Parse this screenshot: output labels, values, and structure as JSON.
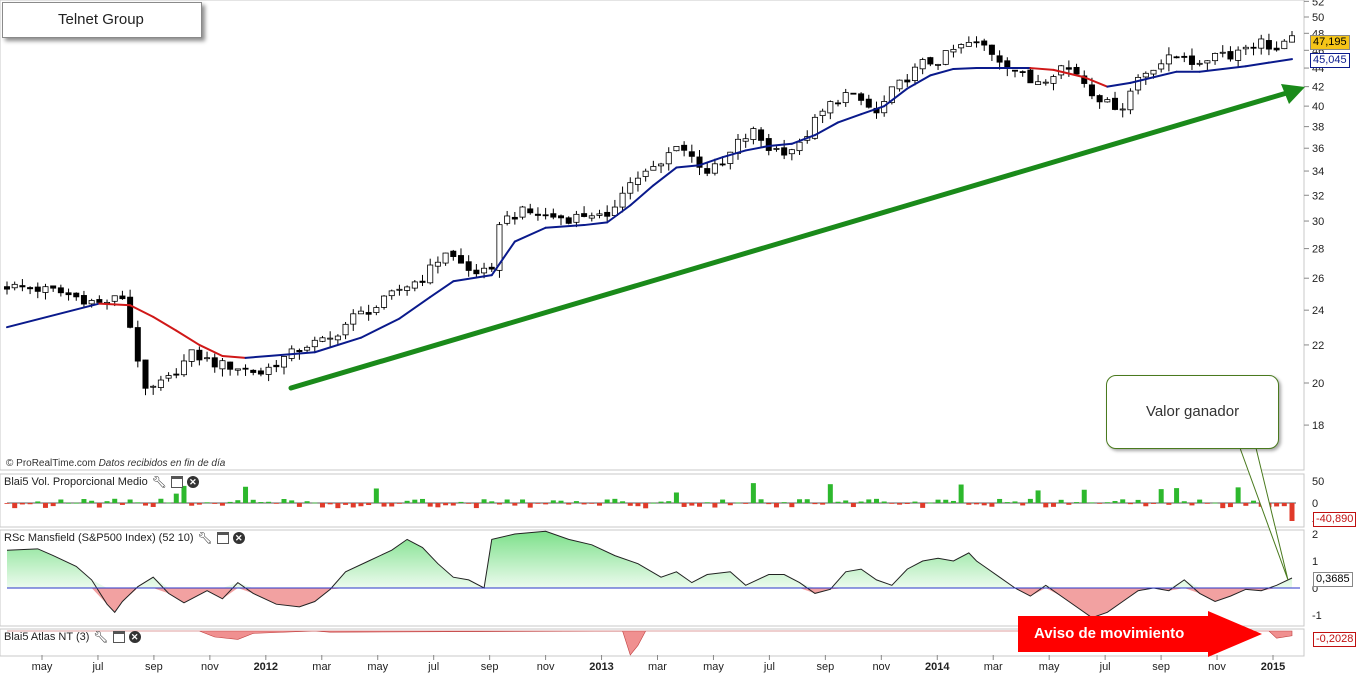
{
  "window": {
    "title": "Telnet Group",
    "credit": "© ProRealTime.com",
    "credit_note": "Datos recibidos en fin de día"
  },
  "panels": {
    "volume_label": "Blai5 Vol. Proporcional Medio",
    "mansfield_label": "RSc Mansfield (S&P500 Index) (52 10)",
    "atlas_label": "Blai5 Atlas NT (3)"
  },
  "annotations": {
    "callout": "Valor ganador",
    "aviso": "Aviso de movimiento"
  },
  "price_tags": {
    "last": "47,195",
    "ma": "45,045",
    "volume": "-40,890",
    "mansfield": "0,3685",
    "atlas": "-0,2028"
  },
  "colors": {
    "candle_outline": "#000000",
    "ma_up": "#0a1a8c",
    "ma_down": "#d01818",
    "trendline": "#1a8a1a",
    "vol_up": "#2db82d",
    "vol_down": "#e03a2a",
    "rs_pos": "#8eea9a",
    "rs_neg": "#f09090",
    "zero_line": "#2a36c8",
    "aviso": "#ff0000",
    "last_tag": "#f5c518"
  },
  "chart_data": [
    {
      "type": "candlestick",
      "title": "Telnet Group",
      "x_ticks": [
        "may",
        "jul",
        "sep",
        "nov",
        "2012",
        "mar",
        "may",
        "jul",
        "sep",
        "nov",
        "2013",
        "mar",
        "may",
        "jul",
        "sep",
        "nov",
        "2014",
        "mar",
        "may",
        "jul",
        "sep",
        "nov",
        "2015"
      ],
      "y_ticks": [
        18,
        20,
        22,
        24,
        26,
        28,
        30,
        32,
        34,
        36,
        38,
        40,
        42,
        44,
        46,
        48,
        50,
        52
      ],
      "ylim": [
        16,
        52
      ],
      "y_scale": "log",
      "price_points": [
        [
          0,
          25.5
        ],
        [
          6,
          25.2
        ],
        [
          12,
          24.4
        ],
        [
          15,
          24.8
        ],
        [
          18,
          19.5
        ],
        [
          21,
          20.2
        ],
        [
          24,
          21.5
        ],
        [
          27,
          21.0
        ],
        [
          30,
          20.8
        ],
        [
          33,
          20.5
        ],
        [
          36,
          21.3
        ],
        [
          39,
          22.0
        ],
        [
          42,
          22.3
        ],
        [
          45,
          23.6
        ],
        [
          48,
          24.2
        ],
        [
          51,
          25.3
        ],
        [
          54,
          26.0
        ],
        [
          57,
          27.8
        ],
        [
          60,
          26.5
        ],
        [
          63,
          26.3
        ],
        [
          64,
          30.0
        ],
        [
          67,
          30.7
        ],
        [
          70,
          30.4
        ],
        [
          73,
          30.2
        ],
        [
          76,
          30.6
        ],
        [
          78,
          30.0
        ],
        [
          80,
          32.5
        ],
        [
          82,
          33.5
        ],
        [
          85,
          34.5
        ],
        [
          87,
          36.5
        ],
        [
          89,
          35.2
        ],
        [
          91,
          34.0
        ],
        [
          93,
          34.5
        ],
        [
          95,
          36.5
        ],
        [
          97,
          37.5
        ],
        [
          99,
          36.0
        ],
        [
          101,
          35.8
        ],
        [
          103,
          36.2
        ],
        [
          105,
          38.5
        ],
        [
          107,
          40.2
        ],
        [
          109,
          41.2
        ],
        [
          111,
          40.5
        ],
        [
          113,
          39.2
        ],
        [
          115,
          41.5
        ],
        [
          117,
          43.0
        ],
        [
          119,
          44.5
        ],
        [
          121,
          44.8
        ],
        [
          123,
          46.0
        ],
        [
          125,
          46.8
        ],
        [
          127,
          46.5
        ],
        [
          129,
          45.0
        ],
        [
          131,
          43.8
        ],
        [
          133,
          42.5
        ],
        [
          135,
          43.0
        ],
        [
          137,
          44.2
        ],
        [
          139,
          43.5
        ],
        [
          141,
          41.5
        ],
        [
          143,
          40.2
        ],
        [
          145,
          40.0
        ],
        [
          147,
          43.0
        ],
        [
          149,
          44.2
        ],
        [
          151,
          45.0
        ],
        [
          153,
          45.5
        ],
        [
          155,
          44.0
        ],
        [
          157,
          46.0
        ],
        [
          159,
          45.5
        ],
        [
          161,
          46.5
        ],
        [
          163,
          47.0
        ],
        [
          165,
          46.0
        ],
        [
          167,
          47.2
        ]
      ],
      "ma_points": [
        [
          0,
          23.0
        ],
        [
          12,
          24.4
        ],
        [
          16,
          24.3
        ],
        [
          19,
          23.6
        ],
        [
          22,
          22.8
        ],
        [
          25,
          22.0
        ],
        [
          28,
          21.4
        ],
        [
          31,
          21.3
        ],
        [
          34,
          21.4
        ],
        [
          40,
          21.6
        ],
        [
          46,
          22.4
        ],
        [
          51,
          23.5
        ],
        [
          55,
          24.8
        ],
        [
          58,
          25.8
        ],
        [
          63,
          26.2
        ],
        [
          66,
          28.5
        ],
        [
          70,
          29.5
        ],
        [
          75,
          29.7
        ],
        [
          78,
          29.9
        ],
        [
          81,
          31.2
        ],
        [
          84,
          32.8
        ],
        [
          87,
          34.3
        ],
        [
          90,
          34.5
        ],
        [
          93,
          35.2
        ],
        [
          96,
          35.8
        ],
        [
          99,
          36.2
        ],
        [
          102,
          36.4
        ],
        [
          105,
          37.2
        ],
        [
          108,
          38.4
        ],
        [
          111,
          39.2
        ],
        [
          114,
          40.0
        ],
        [
          117,
          41.8
        ],
        [
          120,
          43.2
        ],
        [
          123,
          43.9
        ],
        [
          126,
          44.0
        ],
        [
          129,
          44.0
        ],
        [
          133,
          44.0
        ],
        [
          136,
          43.8
        ],
        [
          140,
          43.0
        ],
        [
          143,
          42.0
        ],
        [
          146,
          42.4
        ],
        [
          149,
          43.0
        ],
        [
          152,
          43.6
        ],
        [
          155,
          43.6
        ],
        [
          158,
          43.9
        ],
        [
          161,
          44.2
        ],
        [
          164,
          44.6
        ],
        [
          167,
          45.0
        ]
      ],
      "last": 47.195,
      "ma_last": 45.045
    },
    {
      "type": "bar",
      "title": "Blai5 Vol. Proporcional Medio",
      "y_ticks": [
        -40,
        0,
        50
      ],
      "ylim": [
        -40,
        50
      ],
      "values_note": "one bar per week",
      "last": -40.89
    },
    {
      "type": "area",
      "title": "RSc Mansfield (S&P500 Index) (52 10)",
      "y_ticks": [
        -1,
        0,
        1,
        2
      ],
      "ylim": [
        -1.3,
        2.2
      ],
      "points": [
        [
          0,
          1.4
        ],
        [
          4,
          1.45
        ],
        [
          6,
          1.2
        ],
        [
          9,
          0.8
        ],
        [
          11,
          0.3
        ],
        [
          13,
          -0.6
        ],
        [
          14,
          -0.9
        ],
        [
          15,
          -0.5
        ],
        [
          17,
          0.05
        ],
        [
          19,
          0.4
        ],
        [
          21,
          -0.2
        ],
        [
          23,
          -0.55
        ],
        [
          26,
          -0.1
        ],
        [
          28,
          -0.4
        ],
        [
          30,
          0.2
        ],
        [
          32,
          -0.2
        ],
        [
          35,
          -0.6
        ],
        [
          38,
          -0.7
        ],
        [
          40,
          -0.5
        ],
        [
          42,
          -0.05
        ],
        [
          44,
          0.6
        ],
        [
          47,
          1.0
        ],
        [
          50,
          1.4
        ],
        [
          52,
          1.8
        ],
        [
          54,
          1.5
        ],
        [
          56,
          0.9
        ],
        [
          58,
          0.4
        ],
        [
          60,
          0.3
        ],
        [
          62,
          0.0
        ],
        [
          63,
          1.8
        ],
        [
          66,
          2.0
        ],
        [
          70,
          2.1
        ],
        [
          73,
          1.8
        ],
        [
          76,
          1.6
        ],
        [
          79,
          1.2
        ],
        [
          82,
          0.9
        ],
        [
          85,
          0.4
        ],
        [
          87,
          0.6
        ],
        [
          89,
          0.2
        ],
        [
          91,
          0.5
        ],
        [
          94,
          0.6
        ],
        [
          96,
          0.1
        ],
        [
          99,
          0.5
        ],
        [
          101,
          0.5
        ],
        [
          103,
          0.2
        ],
        [
          105,
          -0.2
        ],
        [
          107,
          -0.05
        ],
        [
          109,
          0.6
        ],
        [
          111,
          0.7
        ],
        [
          113,
          0.3
        ],
        [
          115,
          0.1
        ],
        [
          117,
          0.7
        ],
        [
          119,
          1.0
        ],
        [
          121,
          1.1
        ],
        [
          123,
          1.0
        ],
        [
          125,
          1.3
        ],
        [
          126,
          1.0
        ],
        [
          127,
          0.8
        ],
        [
          129,
          0.4
        ],
        [
          131,
          0.0
        ],
        [
          133,
          -0.3
        ],
        [
          135,
          0.1
        ],
        [
          137,
          -0.3
        ],
        [
          139,
          -0.7
        ],
        [
          141,
          -1.1
        ],
        [
          143,
          -0.9
        ],
        [
          145,
          -0.5
        ],
        [
          147,
          -0.1
        ],
        [
          149,
          0.0
        ],
        [
          151,
          -0.1
        ],
        [
          153,
          0.3
        ],
        [
          155,
          -0.2
        ],
        [
          157,
          -0.5
        ],
        [
          159,
          -0.3
        ],
        [
          161,
          -0.05
        ],
        [
          163,
          -0.1
        ],
        [
          165,
          0.1
        ],
        [
          167,
          0.37
        ]
      ],
      "last": 0.3685
    },
    {
      "type": "area",
      "title": "Blai5 Atlas NT (3)",
      "ylim": [
        -1,
        0
      ],
      "points": [
        [
          0,
          0
        ],
        [
          25,
          0
        ],
        [
          27,
          -0.25
        ],
        [
          30,
          -0.35
        ],
        [
          32,
          -0.1
        ],
        [
          40,
          0
        ],
        [
          42,
          -0.05
        ],
        [
          80,
          0
        ],
        [
          81,
          -1.0
        ],
        [
          82,
          -0.6
        ],
        [
          83,
          0
        ],
        [
          164,
          0
        ],
        [
          165,
          -0.3
        ],
        [
          167,
          -0.2
        ]
      ],
      "last": -0.2028
    }
  ]
}
